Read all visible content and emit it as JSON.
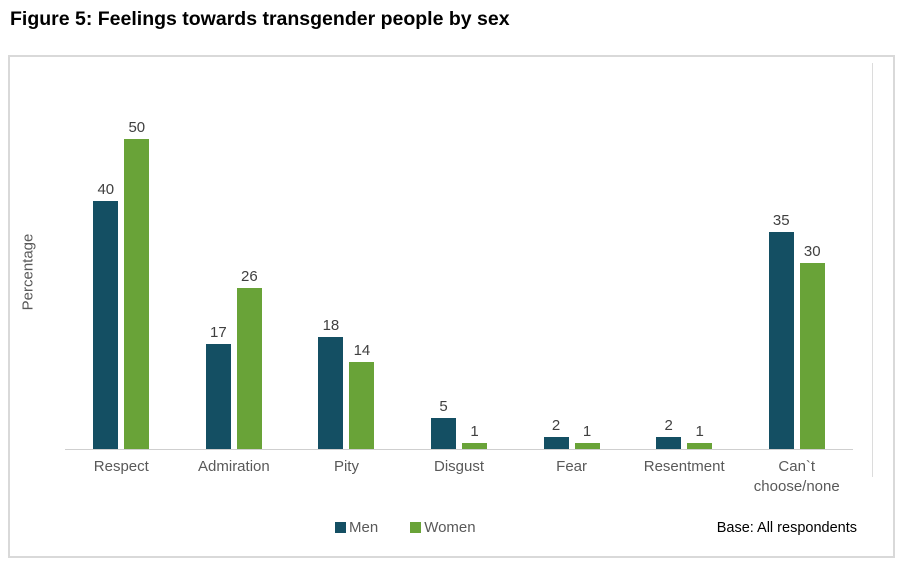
{
  "title": "Figure 5: Feelings towards transgender people by sex",
  "base_note": "Base: All respondents",
  "colors": {
    "men": "#144F63",
    "women": "#69A338",
    "frame_border": "#d9d9d9",
    "axis_line": "#cfcfcf",
    "axis_text": "#595959",
    "value_text": "#404040"
  },
  "chart_data": {
    "type": "bar",
    "title": "Figure 5: Feelings towards transgender people by sex",
    "categories": [
      "Respect",
      "Admiration",
      "Pity",
      "Disgust",
      "Fear",
      "Resentment",
      "Can`t choose/none"
    ],
    "series": [
      {
        "name": "Men",
        "color": "#144F63",
        "values": [
          40,
          17,
          18,
          5,
          2,
          2,
          35
        ]
      },
      {
        "name": "Women",
        "color": "#69A338",
        "values": [
          50,
          26,
          14,
          1,
          1,
          1,
          30
        ]
      }
    ],
    "xlabel": "",
    "ylabel": "Percentage",
    "ylim": [
      0,
      55
    ],
    "grid": false,
    "data_labels": true,
    "legend_position": "bottom"
  }
}
